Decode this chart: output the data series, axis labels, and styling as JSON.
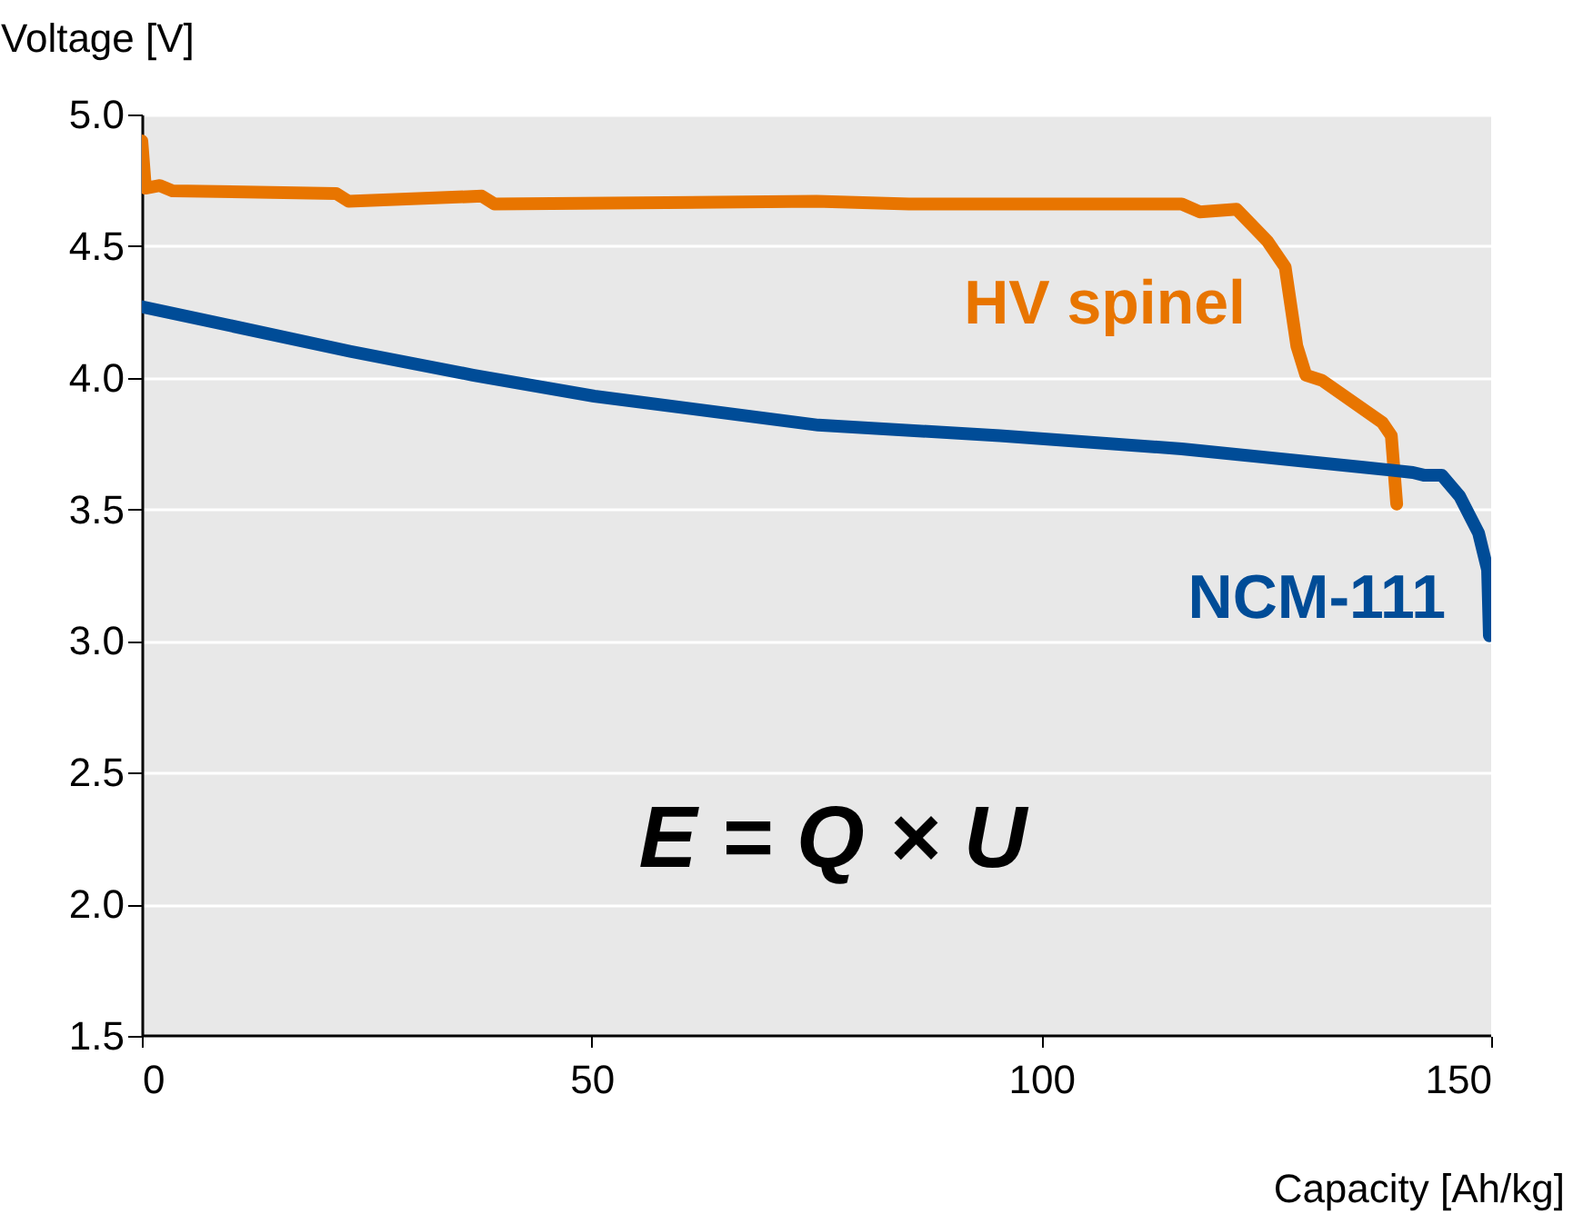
{
  "chart_data": {
    "type": "line",
    "xlabel": "Capacity [Ah/kg]",
    "ylabel": "Voltage [V]",
    "xlim": [
      0,
      150
    ],
    "xticks": [
      0,
      50,
      100,
      150
    ],
    "ylim": [
      1.5,
      5.0
    ],
    "yticks": [
      {
        "value": 1.5,
        "label": "1.5"
      },
      {
        "value": 2.0,
        "label": "2.0"
      },
      {
        "value": 2.5,
        "label": "2.5"
      },
      {
        "value": 3.0,
        "label": "3.0"
      },
      {
        "value": 3.5,
        "label": "3.5"
      },
      {
        "value": 4.0,
        "label": "4.0"
      },
      {
        "value": 4.5,
        "label": "4.5"
      },
      {
        "value": 5.0,
        "label": "5.0"
      }
    ],
    "grid": "y",
    "legend": false,
    "marker": "none",
    "line_style": "solid",
    "annotations": [
      "E = Q × U"
    ],
    "series": [
      {
        "name": "HV spinel",
        "color": "#e87500",
        "x": [
          0,
          0.4,
          2,
          3.4,
          21.6,
          23,
          37.8,
          39.2,
          75,
          85.3,
          115.6,
          117.6,
          121.7,
          125.1,
          127.1,
          128.4,
          129.4,
          131.2,
          137.9,
          138.9,
          139.5
        ],
        "values": [
          4.9,
          4.72,
          4.73,
          4.71,
          4.7,
          4.67,
          4.69,
          4.66,
          4.67,
          4.66,
          4.66,
          4.63,
          4.64,
          4.52,
          4.42,
          4.12,
          4.01,
          3.99,
          3.83,
          3.78,
          3.52
        ]
      },
      {
        "name": "NCM-111",
        "color": "#004c97",
        "x": [
          0,
          23.2,
          36.8,
          50.3,
          75.2,
          95.4,
          115.6,
          135.8,
          141.3,
          142.5,
          144.5,
          146.5,
          148.6,
          149.6,
          149.8
        ],
        "values": [
          4.27,
          4.1,
          4.01,
          3.93,
          3.82,
          3.78,
          3.73,
          3.66,
          3.64,
          3.63,
          3.63,
          3.55,
          3.41,
          3.27,
          3.02
        ]
      }
    ]
  }
}
